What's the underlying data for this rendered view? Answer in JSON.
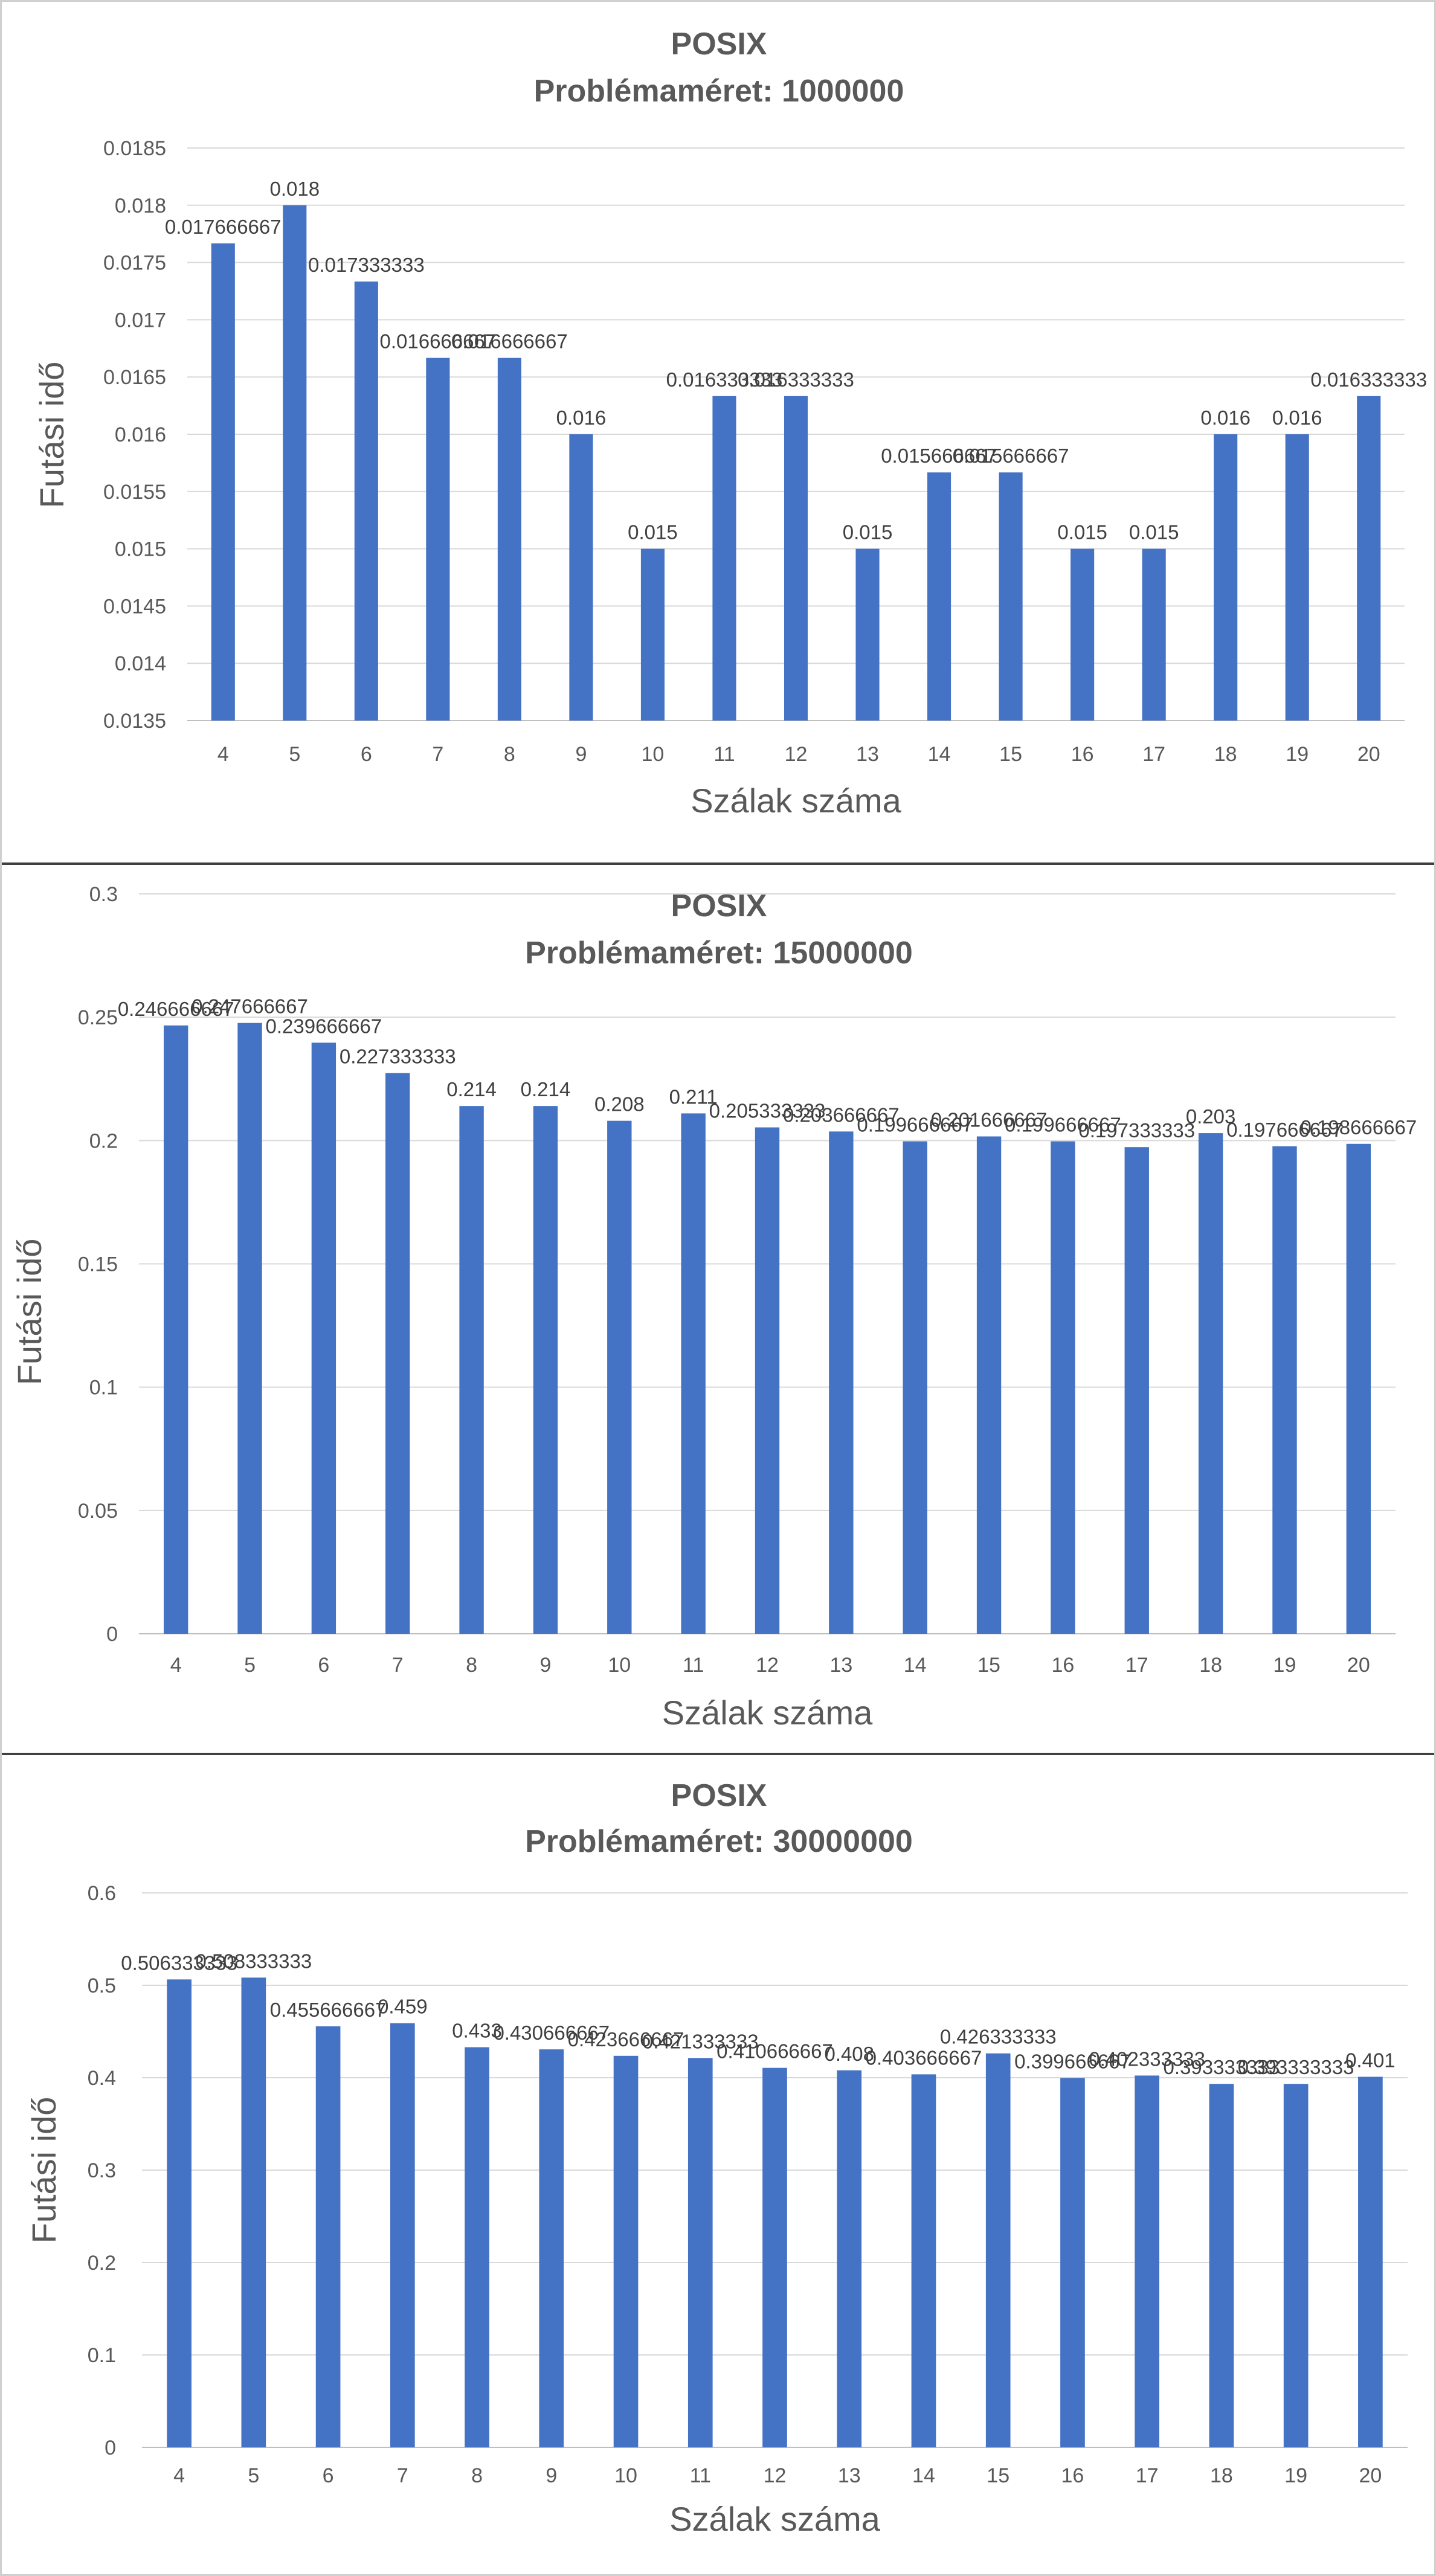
{
  "chart_data": [
    {
      "type": "bar",
      "title": "POSIX",
      "subtitle": "Problémaméret: 1000000",
      "xlabel": "Szálak száma",
      "ylabel": "Futási idő",
      "categories": [
        "4",
        "5",
        "6",
        "7",
        "8",
        "9",
        "10",
        "11",
        "12",
        "13",
        "14",
        "15",
        "16",
        "17",
        "18",
        "19",
        "20"
      ],
      "values": [
        0.017666667,
        0.018,
        0.017333333,
        0.016666667,
        0.016666667,
        0.016,
        0.015,
        0.016333333,
        0.016333333,
        0.015,
        0.015666667,
        0.015666667,
        0.015,
        0.015,
        0.016,
        0.016,
        0.016333333
      ],
      "data_labels": [
        "0.017666667",
        "0.018",
        "0.017333333",
        "0.016666667",
        "0.016666667",
        "0.016",
        "0.015",
        "0.016333333",
        "0.016333333",
        "0.015",
        "0.015666667",
        "0.015666667",
        "0.015",
        "0.015",
        "0.016",
        "0.016",
        "0.016333333"
      ],
      "ylim": [
        0.0135,
        0.0185
      ],
      "yticks": [
        "0.0135",
        "0.014",
        "0.0145",
        "0.015",
        "0.0155",
        "0.016",
        "0.0165",
        "0.017",
        "0.0175",
        "0.018",
        "0.0185"
      ],
      "grid": true,
      "bar_color": "#4472c4"
    },
    {
      "type": "bar",
      "title": "POSIX",
      "subtitle": "Problémaméret: 15000000",
      "xlabel": "Szálak száma",
      "ylabel": "Futási idő",
      "categories": [
        "4",
        "5",
        "6",
        "7",
        "8",
        "9",
        "10",
        "11",
        "12",
        "13",
        "14",
        "15",
        "16",
        "17",
        "18",
        "19",
        "20"
      ],
      "values": [
        0.246666667,
        0.247666667,
        0.239666667,
        0.227333333,
        0.214,
        0.214,
        0.208,
        0.211,
        0.205333333,
        0.203666667,
        0.199666667,
        0.201666667,
        0.199666667,
        0.197333333,
        0.203,
        0.197666667,
        0.198666667
      ],
      "data_labels": [
        "0.246666667",
        "0.247666667",
        "0.239666667",
        "0.227333333",
        "0.214",
        "0.214",
        "0.208",
        "0.211",
        "0.205333333",
        "0.203666667",
        "0.199666667",
        "0.201666667",
        "0.199666667",
        "0.197333333",
        "0.203",
        "0.197666667",
        "0.198666667"
      ],
      "ylim": [
        0,
        0.3
      ],
      "yticks": [
        "0",
        "0.05",
        "0.1",
        "0.15",
        "0.2",
        "0.25",
        "0.3"
      ],
      "grid": true,
      "bar_color": "#4472c4"
    },
    {
      "type": "bar",
      "title": "POSIX",
      "subtitle": "Problémaméret: 30000000",
      "xlabel": "Szálak száma",
      "ylabel": "Futási idő",
      "categories": [
        "4",
        "5",
        "6",
        "7",
        "8",
        "9",
        "10",
        "11",
        "12",
        "13",
        "14",
        "15",
        "16",
        "17",
        "18",
        "19",
        "20"
      ],
      "values": [
        0.506333333,
        0.508333333,
        0.455666667,
        0.459,
        0.433,
        0.430666667,
        0.423666667,
        0.421333333,
        0.410666667,
        0.408,
        0.403666667,
        0.426333333,
        0.399666667,
        0.402333333,
        0.393333333,
        0.393333333,
        0.401
      ],
      "data_labels": [
        "0.506333333",
        "0.508333333",
        "0.455666667",
        "0.459",
        "0.433",
        "0.430666667",
        "0.423666667",
        "0.421333333",
        "0.410666667",
        "0.408",
        "0.403666667",
        "0.426333333",
        "0.399666667",
        "0.402333333",
        "0.393333333",
        "0.393333333",
        "0.401"
      ],
      "ylim": [
        0,
        0.6
      ],
      "yticks": [
        "0",
        "0.1",
        "0.2",
        "0.3",
        "0.4",
        "0.5",
        "0.6"
      ],
      "grid": true,
      "bar_color": "#4472c4"
    }
  ]
}
